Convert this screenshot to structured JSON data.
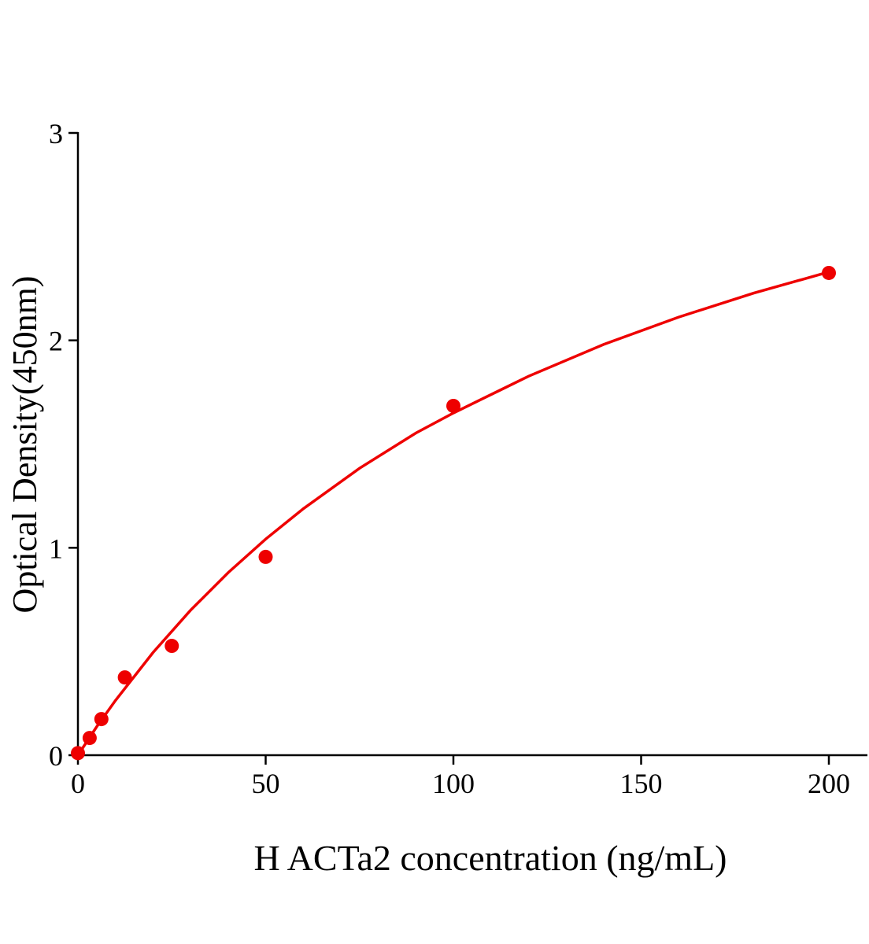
{
  "chart_data": {
    "type": "scatter",
    "xlabel": "H ACTa2 concentration (ng/mL)",
    "ylabel": "Optical Density(450nm)",
    "xlim": [
      0,
      210
    ],
    "ylim": [
      0,
      3
    ],
    "x_ticks": [
      0,
      50,
      100,
      150,
      200
    ],
    "y_ticks": [
      0,
      1,
      2,
      3
    ],
    "grid": false,
    "legend": "none",
    "series": [
      {
        "type": "scatter",
        "x": [
          0,
          3.125,
          6.25,
          12.5,
          25,
          50,
          100,
          200
        ],
        "y": [
          0.01,
          0.083,
          0.174,
          0.375,
          0.527,
          0.956,
          1.684,
          2.325
        ],
        "color": "#ee0000"
      },
      {
        "type": "line",
        "x": [
          0,
          5,
          10,
          20,
          30,
          40,
          50,
          60,
          75,
          90,
          100,
          120,
          140,
          160,
          180,
          200
        ],
        "y": [
          0,
          0.137,
          0.264,
          0.495,
          0.699,
          0.88,
          1.042,
          1.188,
          1.383,
          1.553,
          1.65,
          1.827,
          1.98,
          2.112,
          2.228,
          2.33
        ],
        "color": "#ee0000"
      }
    ]
  }
}
